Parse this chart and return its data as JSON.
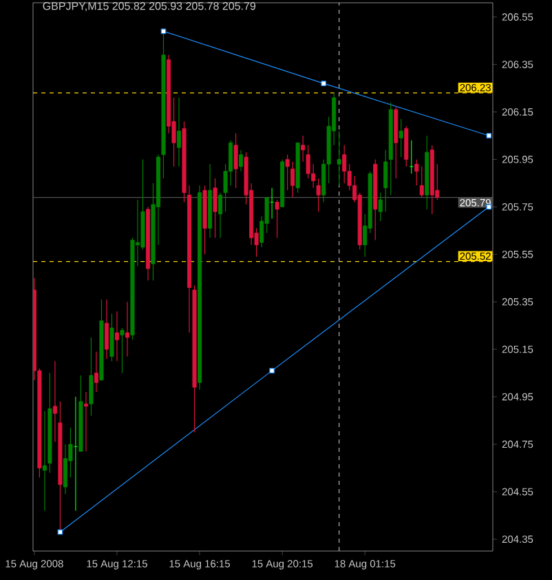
{
  "chart_data": {
    "type": "candlestick",
    "title": "GBPJPY,M15 205.82 205.93 205.78 205.79",
    "categories": [
      "15 Aug 2008",
      null,
      null,
      null,
      null,
      null,
      null,
      null,
      null,
      null,
      null,
      null,
      null,
      null,
      null,
      null,
      "15 Aug 12:15",
      null,
      null,
      null,
      null,
      null,
      null,
      null,
      null,
      null,
      null,
      null,
      null,
      null,
      null,
      null,
      "15 Aug 16:15",
      null,
      null,
      null,
      null,
      null,
      null,
      null,
      null,
      null,
      null,
      null,
      null,
      null,
      null,
      null,
      "15 Aug 20:15",
      null,
      null,
      null,
      null,
      null,
      null,
      null,
      null,
      null,
      null,
      null,
      null,
      null,
      null,
      null,
      "18 Aug 01:15",
      null,
      null,
      null,
      null,
      null,
      null,
      null,
      null,
      null,
      null,
      null,
      null,
      null,
      null,
      null,
      null,
      null,
      null,
      null,
      null,
      null,
      null,
      null,
      null
    ],
    "ohlc": [
      [
        205.4,
        205.45,
        205.02,
        205.06
      ],
      [
        205.06,
        205.07,
        204.61,
        204.65
      ],
      [
        204.64,
        204.89,
        204.47,
        204.66
      ],
      [
        204.67,
        205.05,
        204.63,
        204.9
      ],
      [
        204.91,
        205.1,
        204.76,
        204.88
      ],
      [
        204.84,
        204.93,
        204.38,
        204.58
      ],
      [
        204.57,
        204.75,
        204.54,
        204.69
      ],
      [
        204.68,
        204.82,
        204.61,
        204.75
      ],
      [
        204.74,
        204.95,
        204.47,
        204.74
      ],
      [
        204.72,
        205.04,
        204.72,
        204.93
      ],
      [
        204.92,
        204.97,
        204.72,
        204.91
      ],
      [
        204.92,
        205.2,
        204.87,
        205.04
      ],
      [
        205.05,
        205.14,
        204.97,
        205.01
      ],
      [
        205.02,
        205.36,
        205.02,
        205.27
      ],
      [
        205.26,
        205.36,
        205.11,
        205.15
      ],
      [
        205.12,
        205.3,
        205.1,
        205.24
      ],
      [
        205.22,
        205.31,
        205.1,
        205.19
      ],
      [
        205.21,
        205.24,
        205.05,
        205.23
      ],
      [
        205.22,
        205.35,
        205.12,
        205.2
      ],
      [
        205.21,
        205.62,
        205.19,
        205.61
      ],
      [
        205.59,
        205.78,
        205.5,
        205.6
      ],
      [
        205.58,
        205.95,
        205.57,
        205.73
      ],
      [
        205.74,
        205.75,
        205.44,
        205.49
      ],
      [
        205.51,
        205.85,
        205.44,
        205.76
      ],
      [
        205.75,
        205.97,
        205.59,
        205.96
      ],
      [
        205.97,
        206.49,
        205.87,
        206.39
      ],
      [
        206.37,
        206.39,
        206.06,
        206.09
      ],
      [
        206.11,
        206.21,
        205.92,
        206.02
      ],
      [
        206.0,
        206.21,
        205.92,
        206.07
      ],
      [
        206.08,
        206.11,
        205.77,
        205.81
      ],
      [
        205.8,
        205.84,
        205.22,
        205.41
      ],
      [
        205.4,
        205.42,
        204.8,
        204.99
      ],
      [
        205.01,
        205.84,
        204.98,
        205.81
      ],
      [
        205.82,
        205.84,
        205.55,
        205.66
      ],
      [
        205.66,
        205.93,
        205.62,
        205.82
      ],
      [
        205.83,
        205.87,
        205.62,
        205.73
      ],
      [
        205.72,
        205.81,
        205.62,
        205.8
      ],
      [
        205.81,
        205.93,
        205.73,
        205.9
      ],
      [
        205.9,
        206.03,
        205.84,
        206.02
      ],
      [
        206.01,
        206.06,
        205.83,
        205.91
      ],
      [
        205.92,
        205.99,
        205.9,
        205.97
      ],
      [
        205.96,
        205.98,
        205.76,
        205.8
      ],
      [
        205.82,
        205.85,
        205.59,
        205.62
      ],
      [
        205.64,
        205.66,
        205.54,
        205.59
      ],
      [
        205.6,
        205.71,
        205.58,
        205.69
      ],
      [
        205.68,
        205.79,
        205.64,
        205.79
      ],
      [
        205.77,
        205.83,
        205.7,
        205.77
      ],
      [
        205.77,
        205.78,
        205.62,
        205.74
      ],
      [
        205.75,
        205.95,
        205.75,
        205.94
      ],
      [
        205.95,
        205.97,
        205.82,
        205.92
      ],
      [
        205.91,
        205.94,
        205.79,
        205.84
      ],
      [
        205.83,
        206.02,
        205.81,
        206.02
      ],
      [
        206.01,
        206.05,
        205.94,
        205.99
      ],
      [
        205.97,
        206.01,
        205.87,
        205.89
      ],
      [
        205.89,
        205.93,
        205.83,
        205.86
      ],
      [
        205.84,
        205.87,
        205.73,
        205.8
      ],
      [
        205.8,
        205.95,
        205.77,
        205.93
      ],
      [
        205.93,
        206.13,
        205.85,
        206.09
      ],
      [
        206.07,
        206.23,
        206.01,
        206.21
      ],
      [
        205.93,
        206.07,
        205.84,
        205.95
      ],
      [
        205.97,
        206.01,
        205.85,
        205.9
      ],
      [
        205.9,
        205.93,
        205.82,
        205.84
      ],
      [
        205.84,
        205.88,
        205.77,
        205.78
      ],
      [
        205.8,
        205.81,
        205.57,
        205.59
      ],
      [
        205.59,
        205.72,
        205.54,
        205.67
      ],
      [
        205.66,
        205.9,
        205.64,
        205.89
      ],
      [
        205.93,
        205.95,
        205.61,
        205.74
      ],
      [
        205.73,
        205.81,
        205.69,
        205.78
      ],
      [
        205.83,
        205.99,
        205.73,
        205.94
      ],
      [
        205.95,
        206.19,
        205.8,
        206.16
      ],
      [
        206.16,
        206.17,
        205.87,
        206.02
      ],
      [
        206.04,
        206.12,
        205.96,
        206.07
      ],
      [
        206.08,
        206.09,
        205.92,
        205.95
      ],
      [
        205.92,
        206.03,
        205.89,
        205.92
      ],
      [
        205.93,
        205.95,
        205.84,
        205.9
      ],
      [
        205.84,
        205.92,
        205.79,
        205.8
      ],
      [
        205.8,
        206.05,
        205.74,
        205.98
      ],
      [
        205.99,
        206.01,
        205.72,
        205.8
      ],
      [
        205.82,
        205.93,
        205.78,
        205.79
      ],
      null,
      null,
      null,
      null,
      null,
      null,
      null,
      null,
      null,
      null
    ],
    "colors": [
      "#dc143c",
      "#dc143c",
      "#008000",
      "#008000",
      "#dc143c",
      "#dc143c",
      "#008000",
      "#008000",
      "#00ff00",
      "#008000",
      "#dc143c",
      "#008000",
      "#dc143c",
      "#008000",
      "#dc143c",
      "#008000",
      "#dc143c",
      "#008000",
      "#dc143c",
      "#008000",
      "#008000",
      "#008000",
      "#dc143c",
      "#008000",
      "#008000",
      "#008000",
      "#dc143c",
      "#dc143c",
      "#008000",
      "#dc143c",
      "#dc143c",
      "#dc143c",
      "#008000",
      "#dc143c",
      "#008000",
      "#dc143c",
      "#008000",
      "#008000",
      "#008000",
      "#dc143c",
      "#008000",
      "#dc143c",
      "#dc143c",
      "#dc143c",
      "#008000",
      "#008000",
      "#00ff00",
      "#dc143c",
      "#008000",
      "#dc143c",
      "#dc143c",
      "#008000",
      "#dc143c",
      "#dc143c",
      "#dc143c",
      "#dc143c",
      "#008000",
      "#008000",
      "#008000",
      "#008000",
      "#dc143c",
      "#dc143c",
      "#dc143c",
      "#dc143c",
      "#008000",
      "#008000",
      "#dc143c",
      "#008000",
      "#008000",
      "#008000",
      "#dc143c",
      "#008000",
      "#dc143c",
      "#00ff00",
      "#dc143c",
      "#dc143c",
      "#008000",
      "#dc143c",
      "#dc143c",
      null,
      null,
      null,
      null,
      null,
      null,
      null,
      null,
      null,
      null
    ],
    "series": [
      {
        "type": "line",
        "color": "#1e90ff",
        "marker": "square",
        "values": [
          null,
          null,
          null,
          null,
          null,
          null,
          null,
          null,
          null,
          null,
          null,
          null,
          null,
          null,
          null,
          null,
          null,
          null,
          null,
          null,
          null,
          null,
          null,
          null,
          null,
          206.49,
          null,
          null,
          null,
          null,
          null,
          null,
          null,
          null,
          null,
          null,
          null,
          null,
          null,
          null,
          null,
          null,
          null,
          null,
          null,
          null,
          null,
          null,
          null,
          null,
          null,
          null,
          null,
          null,
          null,
          null,
          206.27,
          null,
          null,
          null,
          null,
          null,
          null,
          null,
          null,
          null,
          null,
          null,
          null,
          null,
          null,
          null,
          null,
          null,
          null,
          null,
          null,
          null,
          null,
          null,
          null,
          null,
          null,
          null,
          null,
          null,
          null,
          null,
          206.05
        ]
      },
      {
        "type": "line",
        "color": "#1e90ff",
        "marker": "square",
        "values": [
          null,
          null,
          null,
          null,
          null,
          204.38,
          null,
          null,
          null,
          null,
          null,
          null,
          null,
          null,
          null,
          null,
          null,
          null,
          null,
          null,
          null,
          null,
          null,
          null,
          null,
          null,
          null,
          null,
          null,
          null,
          null,
          null,
          null,
          null,
          null,
          null,
          null,
          null,
          null,
          null,
          null,
          null,
          null,
          null,
          null,
          null,
          205.06,
          null,
          null,
          null,
          null,
          null,
          null,
          null,
          null,
          null,
          null,
          null,
          null,
          null,
          null,
          null,
          null,
          null,
          null,
          null,
          null,
          null,
          null,
          null,
          null,
          null,
          null,
          null,
          null,
          null,
          null,
          null,
          null,
          null,
          null,
          null,
          null,
          null,
          null,
          null,
          null,
          null,
          205.75
        ]
      }
    ],
    "ylim": [
      204.3,
      206.61
    ],
    "yticks": [
      204.35,
      204.55,
      204.75,
      204.95,
      205.15,
      205.35,
      205.55,
      205.75,
      205.95,
      206.15,
      206.35,
      206.55
    ],
    "ref_lines": [
      {
        "axis": "y",
        "value": 206.23,
        "label": "206.23",
        "color": "#ffd700",
        "line_style": "dashed"
      },
      {
        "axis": "y",
        "value": 205.79,
        "label": "205.79",
        "color": "#505050",
        "line_style": "solid"
      },
      {
        "axis": "y",
        "value": 205.52,
        "label": "205.52",
        "color": "#ffd700",
        "line_style": "dashed"
      }
    ]
  }
}
